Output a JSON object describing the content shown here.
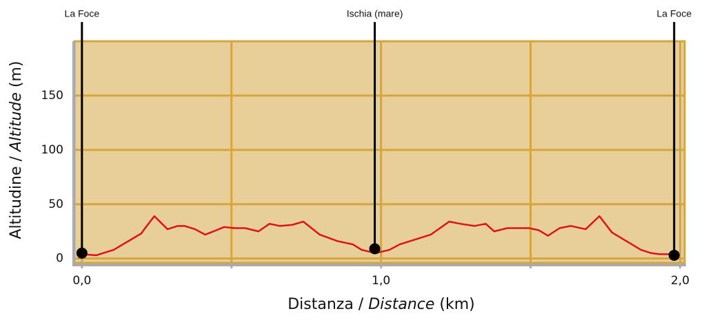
{
  "chart_data": {
    "type": "line",
    "x_label": [
      "Distanza / ",
      "Distance",
      " (km)"
    ],
    "y_label": [
      "Altitudine / ",
      "Altitude",
      " (m)"
    ],
    "xlim": [
      -0.025,
      2.015
    ],
    "ylim": [
      -4,
      200
    ],
    "xticks": [
      {
        "value": 0,
        "label": "0,0"
      },
      {
        "value": 1,
        "label": "1,0"
      },
      {
        "value": 2,
        "label": "2,0"
      }
    ],
    "xminorticks": [
      0.5,
      1.5
    ],
    "yticks": [
      0,
      50,
      100,
      150
    ],
    "grid": true,
    "x": [
      0,
      0.048,
      0.106,
      0.198,
      0.214,
      0.242,
      0.286,
      0.32,
      0.343,
      0.378,
      0.412,
      0.44,
      0.475,
      0.509,
      0.546,
      0.59,
      0.627,
      0.661,
      0.703,
      0.74,
      0.795,
      0.855,
      0.906,
      0.935,
      0.982,
      1.028,
      1.062,
      1.166,
      1.228,
      1.265,
      1.313,
      1.35,
      1.378,
      1.422,
      1.495,
      1.528,
      1.558,
      1.597,
      1.634,
      1.684,
      1.73,
      1.772,
      1.869,
      1.903,
      1.931,
      1.984
    ],
    "series": [
      {
        "color": "#e0101a",
        "values": [
          4,
          3,
          8,
          23,
          29,
          39,
          27,
          30,
          30,
          27,
          22,
          25,
          29,
          28,
          28,
          25,
          32,
          30,
          31,
          34,
          22,
          16,
          13,
          8,
          5,
          8,
          13,
          22,
          34,
          32,
          30,
          32,
          25,
          28,
          28,
          26,
          21,
          28,
          30,
          27,
          39,
          24,
          8,
          5,
          4,
          4
        ]
      }
    ],
    "markers": [
      {
        "label": "La Foce",
        "x": 0,
        "altitude": 5
      },
      {
        "label": "Ischia (mare)",
        "x": 0.979,
        "altitude": 9
      },
      {
        "label": "La Foce",
        "x": 1.98,
        "altitude": 3
      }
    ]
  }
}
